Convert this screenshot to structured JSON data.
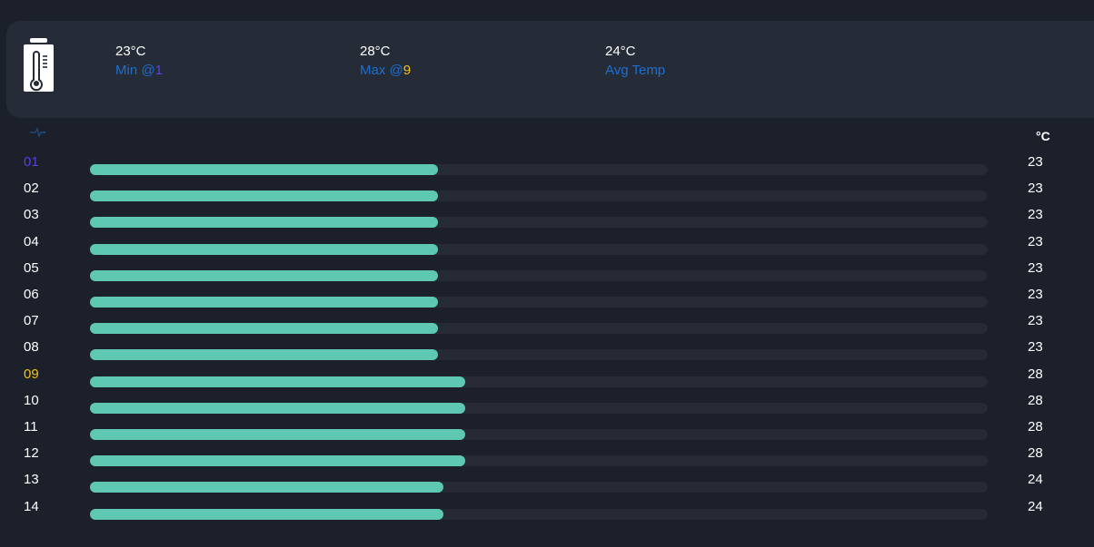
{
  "summary": {
    "min": {
      "value": "23°C",
      "label": "Min @",
      "index": "1"
    },
    "max": {
      "value": "28°C",
      "label": "Max @",
      "index": "9"
    },
    "avg": {
      "value": "24°C",
      "label": "Avg Temp"
    }
  },
  "unit": "°C",
  "colors": {
    "min": "#5b3fe0",
    "max": "#f2c318",
    "bar": "#5ec8b2",
    "label": "#1e6fd0"
  },
  "rows": [
    {
      "label": "01",
      "value": 23
    },
    {
      "label": "02",
      "value": 23
    },
    {
      "label": "03",
      "value": 23
    },
    {
      "label": "04",
      "value": 23
    },
    {
      "label": "05",
      "value": 23
    },
    {
      "label": "06",
      "value": 23
    },
    {
      "label": "07",
      "value": 23
    },
    {
      "label": "08",
      "value": 23
    },
    {
      "label": "09",
      "value": 28
    },
    {
      "label": "10",
      "value": 28
    },
    {
      "label": "11",
      "value": 28
    },
    {
      "label": "12",
      "value": 28
    },
    {
      "label": "13",
      "value": 24
    },
    {
      "label": "14",
      "value": 24
    }
  ]
}
